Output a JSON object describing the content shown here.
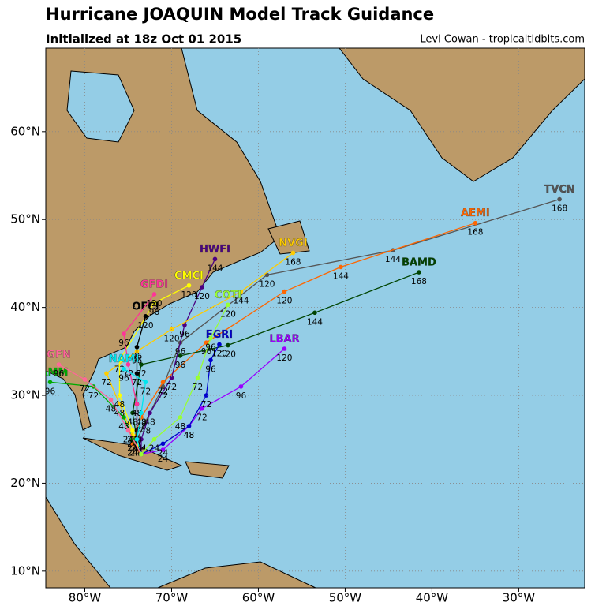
{
  "chart_data": {
    "type": "map",
    "title": "Hurricane JOAQUIN Model Track Guidance",
    "subtitle": "Initialized at 18z Oct 01 2015",
    "credit": "Levi Cowan - tropicaltidbits.com",
    "xlim": [
      -84.5,
      -22.4
    ],
    "ylim": [
      8.1,
      69.5
    ],
    "xticks": [
      {
        "value": -80,
        "label": "80°W"
      },
      {
        "value": -70,
        "label": "70°W"
      },
      {
        "value": -60,
        "label": "60°W"
      },
      {
        "value": -50,
        "label": "50°W"
      },
      {
        "value": -40,
        "label": "40°W"
      },
      {
        "value": -30,
        "label": "30°W"
      }
    ],
    "yticks": [
      {
        "value": 10,
        "label": "10°N"
      },
      {
        "value": 20,
        "label": "20°N"
      },
      {
        "value": 30,
        "label": "30°N"
      },
      {
        "value": 40,
        "label": "40°N"
      },
      {
        "value": 50,
        "label": "50°N"
      },
      {
        "value": 60,
        "label": "60°N"
      }
    ],
    "grid": true,
    "series": [
      {
        "name": "TVCN",
        "color": "#555555",
        "hours": [
          0,
          24,
          48,
          72,
          96,
          120,
          144,
          168
        ],
        "lon": [
          -73.5,
          -74.2,
          -73,
          -71,
          -69,
          -59,
          -44.5,
          -25.3
        ],
        "lat": [
          23.3,
          24.5,
          27,
          31,
          36,
          43.7,
          46.5,
          52.3
        ]
      },
      {
        "name": "AEMI",
        "color": "#ff6600",
        "hours": [
          0,
          24,
          48,
          72,
          96,
          120,
          144,
          168
        ],
        "lon": [
          -73.5,
          -74.5,
          -73.5,
          -71,
          -66,
          -57,
          -50.5,
          -35
        ],
        "lat": [
          23.3,
          24.5,
          27.5,
          31.5,
          36,
          41.8,
          44.6,
          49.6
        ]
      },
      {
        "name": "BAMD",
        "color": "#004400",
        "hours": [
          0,
          24,
          48,
          72,
          96,
          120,
          144,
          168
        ],
        "lon": [
          -73.5,
          -74,
          -74.5,
          -73.5,
          -69,
          -63.5,
          -53.5,
          -41.5
        ],
        "lat": [
          23.3,
          25,
          28,
          33.5,
          34.5,
          35.7,
          39.4,
          44
        ]
      },
      {
        "name": "LBAR",
        "color": "#9900ff",
        "hours": [
          0,
          24,
          48,
          72,
          96,
          120
        ],
        "lon": [
          -73.5,
          -71,
          -68,
          -66.5,
          -62,
          -57
        ],
        "lat": [
          23.3,
          23.8,
          26.5,
          28.5,
          31,
          35.3
        ]
      },
      {
        "name": "HWFI",
        "color": "#4b0082",
        "hours": [
          0,
          24,
          48,
          72,
          96,
          120,
          144
        ],
        "lon": [
          -73.5,
          -73.5,
          -72.5,
          -70,
          -68.5,
          -66.5,
          -65
        ],
        "lat": [
          23.3,
          25,
          28,
          32,
          38,
          42.3,
          45.5
        ]
      },
      {
        "name": "NVGI",
        "color": "#ffcc00",
        "hours": [
          0,
          24,
          48,
          72,
          96,
          120,
          144,
          168
        ],
        "lon": [
          -73.5,
          -74.5,
          -76,
          -77.5,
          -74,
          -70,
          -62,
          -56
        ],
        "lat": [
          23.3,
          25.5,
          29,
          32.5,
          35,
          37.5,
          41.8,
          46.2
        ]
      },
      {
        "name": "CMCI",
        "color": "#ffff00",
        "hours": [
          0,
          24,
          48,
          72,
          96,
          120
        ],
        "lon": [
          -73.5,
          -74.5,
          -76,
          -76,
          -72,
          -68
        ],
        "lat": [
          23.3,
          26,
          30,
          34,
          40.5,
          42.5
        ]
      },
      {
        "name": "OFCI",
        "color": "#000000",
        "hours": [
          0,
          24,
          48,
          72,
          96,
          120
        ],
        "lon": [
          -73.5,
          -74,
          -74,
          -74,
          -74,
          -73
        ],
        "lat": [
          23.3,
          26,
          29,
          32.5,
          35.5,
          39
        ]
      },
      {
        "name": "GFDI",
        "color": "#ff3399",
        "hours": [
          0,
          24,
          48,
          72,
          96,
          120
        ],
        "lon": [
          -73.5,
          -74,
          -74,
          -75,
          -75.5,
          -72
        ],
        "lat": [
          23.3,
          25,
          29,
          33.5,
          37,
          41.5
        ]
      },
      {
        "name": "NAMI",
        "color": "#00e5ee",
        "hours": [
          0,
          24,
          48,
          72,
          96
        ],
        "lon": [
          -73.5,
          -74,
          -73.5,
          -73,
          -75.5
        ],
        "lat": [
          23.3,
          25,
          28,
          31.5,
          33
        ]
      },
      {
        "name": "EGRI",
        "color": "#0000cc",
        "hours": [
          0,
          24,
          48,
          72,
          96,
          120
        ],
        "lon": [
          -73.5,
          -71,
          -68,
          -66,
          -65.5,
          -64.5
        ],
        "lat": [
          23.3,
          24.5,
          26.5,
          30,
          34,
          35.8
        ]
      },
      {
        "name": "BAMM",
        "color": "#00aa00",
        "hours": [
          0,
          24,
          48,
          72,
          96
        ],
        "lon": [
          -73.5,
          -74.5,
          -75.5,
          -79,
          -84
        ],
        "lat": [
          23.3,
          25,
          27.5,
          31,
          31.5
        ]
      },
      {
        "name": "GFN",
        "color": "#ff6699",
        "hours": [
          0,
          24,
          48,
          72,
          96
        ],
        "lon": [
          -73.5,
          -75,
          -77,
          -80,
          -83
        ],
        "lat": [
          23.3,
          26,
          29.5,
          31.8,
          33.5
        ]
      },
      {
        "name": "COTI",
        "color": "#99ff33",
        "hours": [
          0,
          24,
          48,
          72,
          96,
          120
        ],
        "lon": [
          -73.5,
          -72,
          -69,
          -67,
          -65.5,
          -63.5
        ],
        "lat": [
          23.3,
          25,
          27.5,
          32,
          36.5,
          40.3
        ]
      }
    ]
  }
}
